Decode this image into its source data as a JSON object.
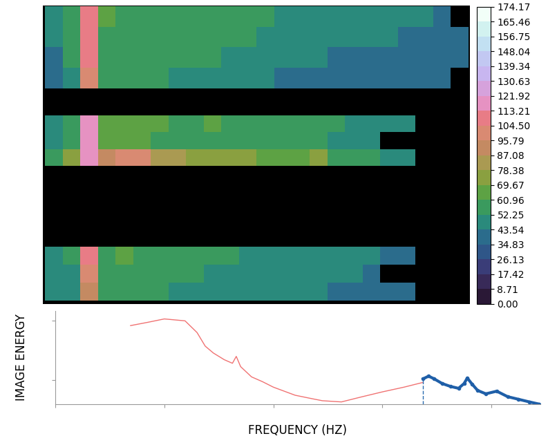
{
  "chart_data": [
    {
      "type": "heatmap",
      "tick_labels": false,
      "cells": [
        [
          [
            45,
            55,
            108,
            62,
            60,
            60,
            59,
            58,
            57,
            56,
            55,
            54,
            53,
            52,
            51,
            50,
            49,
            48,
            47,
            46,
            45,
            44,
            43,
            null
          ],
          [
            44,
            56,
            112,
            60,
            60,
            59,
            58,
            57,
            56,
            55,
            54,
            53,
            52,
            50,
            49,
            48,
            47,
            46,
            45,
            44,
            43,
            42,
            41,
            40
          ],
          [
            42,
            54,
            110,
            58,
            58,
            57,
            56,
            55,
            54,
            53,
            52,
            50,
            48,
            47,
            46,
            44,
            43,
            42,
            41,
            40,
            39,
            38,
            38,
            37
          ],
          [
            38,
            50,
            100,
            55,
            55,
            54,
            53,
            52,
            51,
            50,
            48,
            46,
            45,
            43,
            42,
            41,
            40,
            39,
            38,
            37,
            36,
            36,
            35,
            null
          ]
        ],
        [
          [
            50,
            60,
            115,
            65,
            62,
            62,
            61,
            60,
            60,
            62,
            60,
            58,
            57,
            56,
            56,
            55,
            54,
            52,
            50,
            48,
            46,
            null,
            null,
            null
          ],
          [
            48,
            58,
            120,
            64,
            62,
            61,
            60,
            59,
            58,
            60,
            58,
            57,
            56,
            55,
            55,
            54,
            52,
            50,
            48,
            null,
            null,
            null,
            null,
            null
          ],
          [
            60,
            70,
            118,
            95,
            100,
            98,
            85,
            80,
            78,
            75,
            72,
            70,
            68,
            66,
            64,
            70,
            60,
            58,
            55,
            50,
            45,
            null,
            null,
            null
          ]
        ],
        [
          [
            50,
            55,
            105,
            60,
            62,
            58,
            60,
            56,
            56,
            54,
            54,
            52,
            52,
            50,
            50,
            48,
            47,
            46,
            44,
            42,
            40,
            null,
            null,
            null
          ],
          [
            48,
            52,
            100,
            58,
            60,
            56,
            58,
            54,
            54,
            52,
            52,
            50,
            50,
            48,
            48,
            46,
            45,
            44,
            42,
            null,
            null,
            null,
            null,
            null
          ],
          [
            45,
            48,
            90,
            55,
            55,
            54,
            54,
            52,
            51,
            50,
            49,
            48,
            47,
            46,
            45,
            44,
            43,
            42,
            40,
            38,
            36,
            null,
            null,
            null
          ]
        ]
      ],
      "colorbar_range": [
        0,
        174.17
      ],
      "colorbar_ticks": [
        {
          "value": 0,
          "label": "0.00"
        },
        8.71,
        17.42,
        26.13,
        34.83,
        43.54,
        52.25,
        60.96,
        69.67,
        78.38,
        87.08,
        95.79,
        {
          "value": 104.5,
          "label": "104.50"
        },
        113.21,
        121.92,
        130.63,
        139.34,
        148.04,
        156.75,
        165.46,
        174.17
      ]
    },
    {
      "type": "line",
      "xlabel": "FREQUENCY (HZ)",
      "ylabel": "IMAGE ENERGY",
      "tick_labels": false,
      "xlim": [
        0,
        89
      ],
      "xticks": [
        0,
        20,
        40,
        60,
        80
      ],
      "ylim": [
        0,
        3.9
      ],
      "yticks": [
        1,
        3.5
      ],
      "series": [
        {
          "color": "#f07272",
          "line_style": "solid",
          "x": [
            13.8,
            17,
            20,
            23.8,
            26,
            27.5,
            29,
            31,
            32.5,
            33.2,
            34,
            36,
            38,
            40,
            42,
            44,
            47,
            49,
            52.5,
            56,
            60,
            64,
            67.5
          ],
          "values": [
            3.29,
            3.43,
            3.57,
            3.49,
            3.0,
            2.43,
            2.14,
            1.86,
            1.71,
            2.0,
            1.57,
            1.14,
            0.94,
            0.71,
            0.54,
            0.37,
            0.23,
            0.14,
            0.09,
            0.29,
            0.51,
            0.71,
            0.91
          ]
        },
        {
          "color": "#1f5fa8",
          "line_style": "solid",
          "marker": "circle",
          "x": [
            67.5,
            68.5,
            69.5,
            71,
            72.5,
            74,
            75,
            75.6,
            76.5,
            77.5,
            79,
            81,
            83,
            85,
            87,
            88.75
          ],
          "values": [
            1.06,
            1.17,
            1.06,
            0.86,
            0.74,
            0.66,
            0.86,
            1.09,
            0.83,
            0.57,
            0.43,
            0.54,
            0.31,
            0.2,
            0.09,
            0.0
          ]
        }
      ],
      "reference_line": {
        "x": 67.5,
        "y": 1.06,
        "color": "#2b6cb0",
        "line_style": "dashed"
      }
    }
  ]
}
